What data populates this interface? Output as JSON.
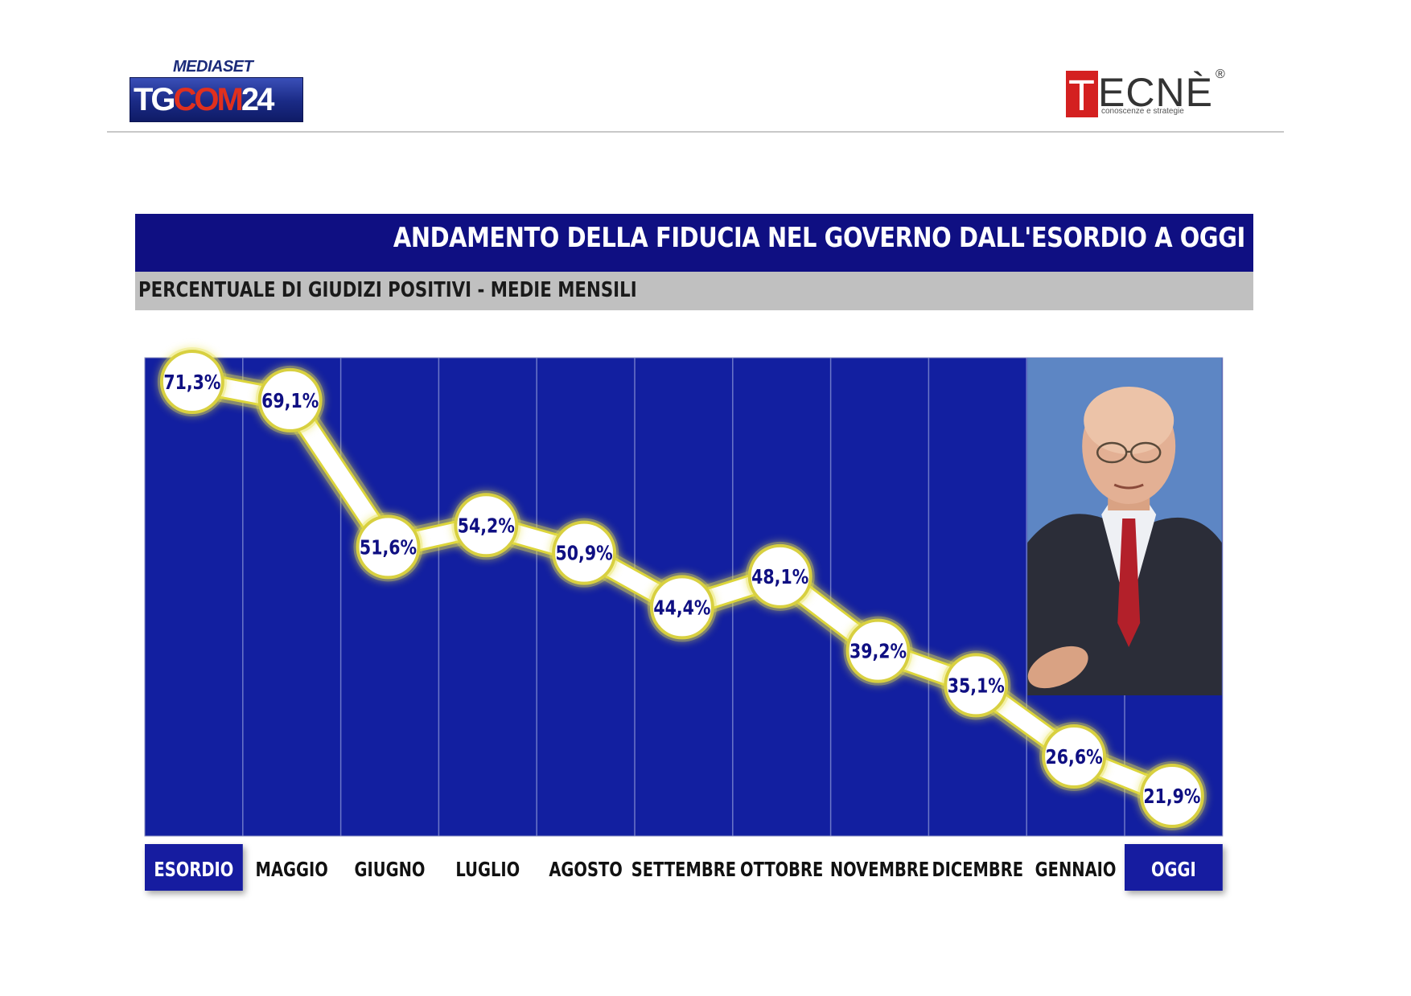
{
  "header": {
    "left_logo": {
      "top": "MEDIASET",
      "main": "TGCOM24"
    },
    "right_logo": {
      "main": "TECNÈ",
      "reg": "®",
      "tagline": "conoscenze e strategie"
    }
  },
  "chart_data": {
    "type": "line",
    "title": "ANDAMENTO DELLA FIDUCIA NEL GOVERNO DALL'ESORDIO A OGGI",
    "subtitle": "PERCENTUALE DI GIUDIZI POSITIVI - MEDIE MENSILI",
    "categories": [
      "ESORDIO",
      "MAGGIO",
      "GIUGNO",
      "LUGLIO",
      "AGOSTO",
      "SETTEMBRE",
      "OTTOBRE",
      "NOVEMBRE",
      "DICEMBRE",
      "GENNAIO",
      "OGGI"
    ],
    "highlighted_categories": [
      "ESORDIO",
      "OGGI"
    ],
    "values": [
      71.3,
      69.1,
      51.6,
      54.2,
      50.9,
      44.4,
      48.1,
      39.2,
      35.1,
      26.6,
      21.9
    ],
    "value_labels": [
      "71,3%",
      "69,1%",
      "51,6%",
      "54,2%",
      "50,9%",
      "44,4%",
      "48,1%",
      "39,2%",
      "35,1%",
      "26,6%",
      "21,9%"
    ],
    "ylim": [
      15,
      80
    ],
    "grid": false,
    "legend": "none",
    "colors": {
      "background": "#0f1f9a",
      "line": "#ffffff",
      "glow": "#e8e24a",
      "label": "#0f0f82",
      "title_bar": "#0f0f82",
      "subtitle_bar": "#c0c0c0"
    }
  }
}
